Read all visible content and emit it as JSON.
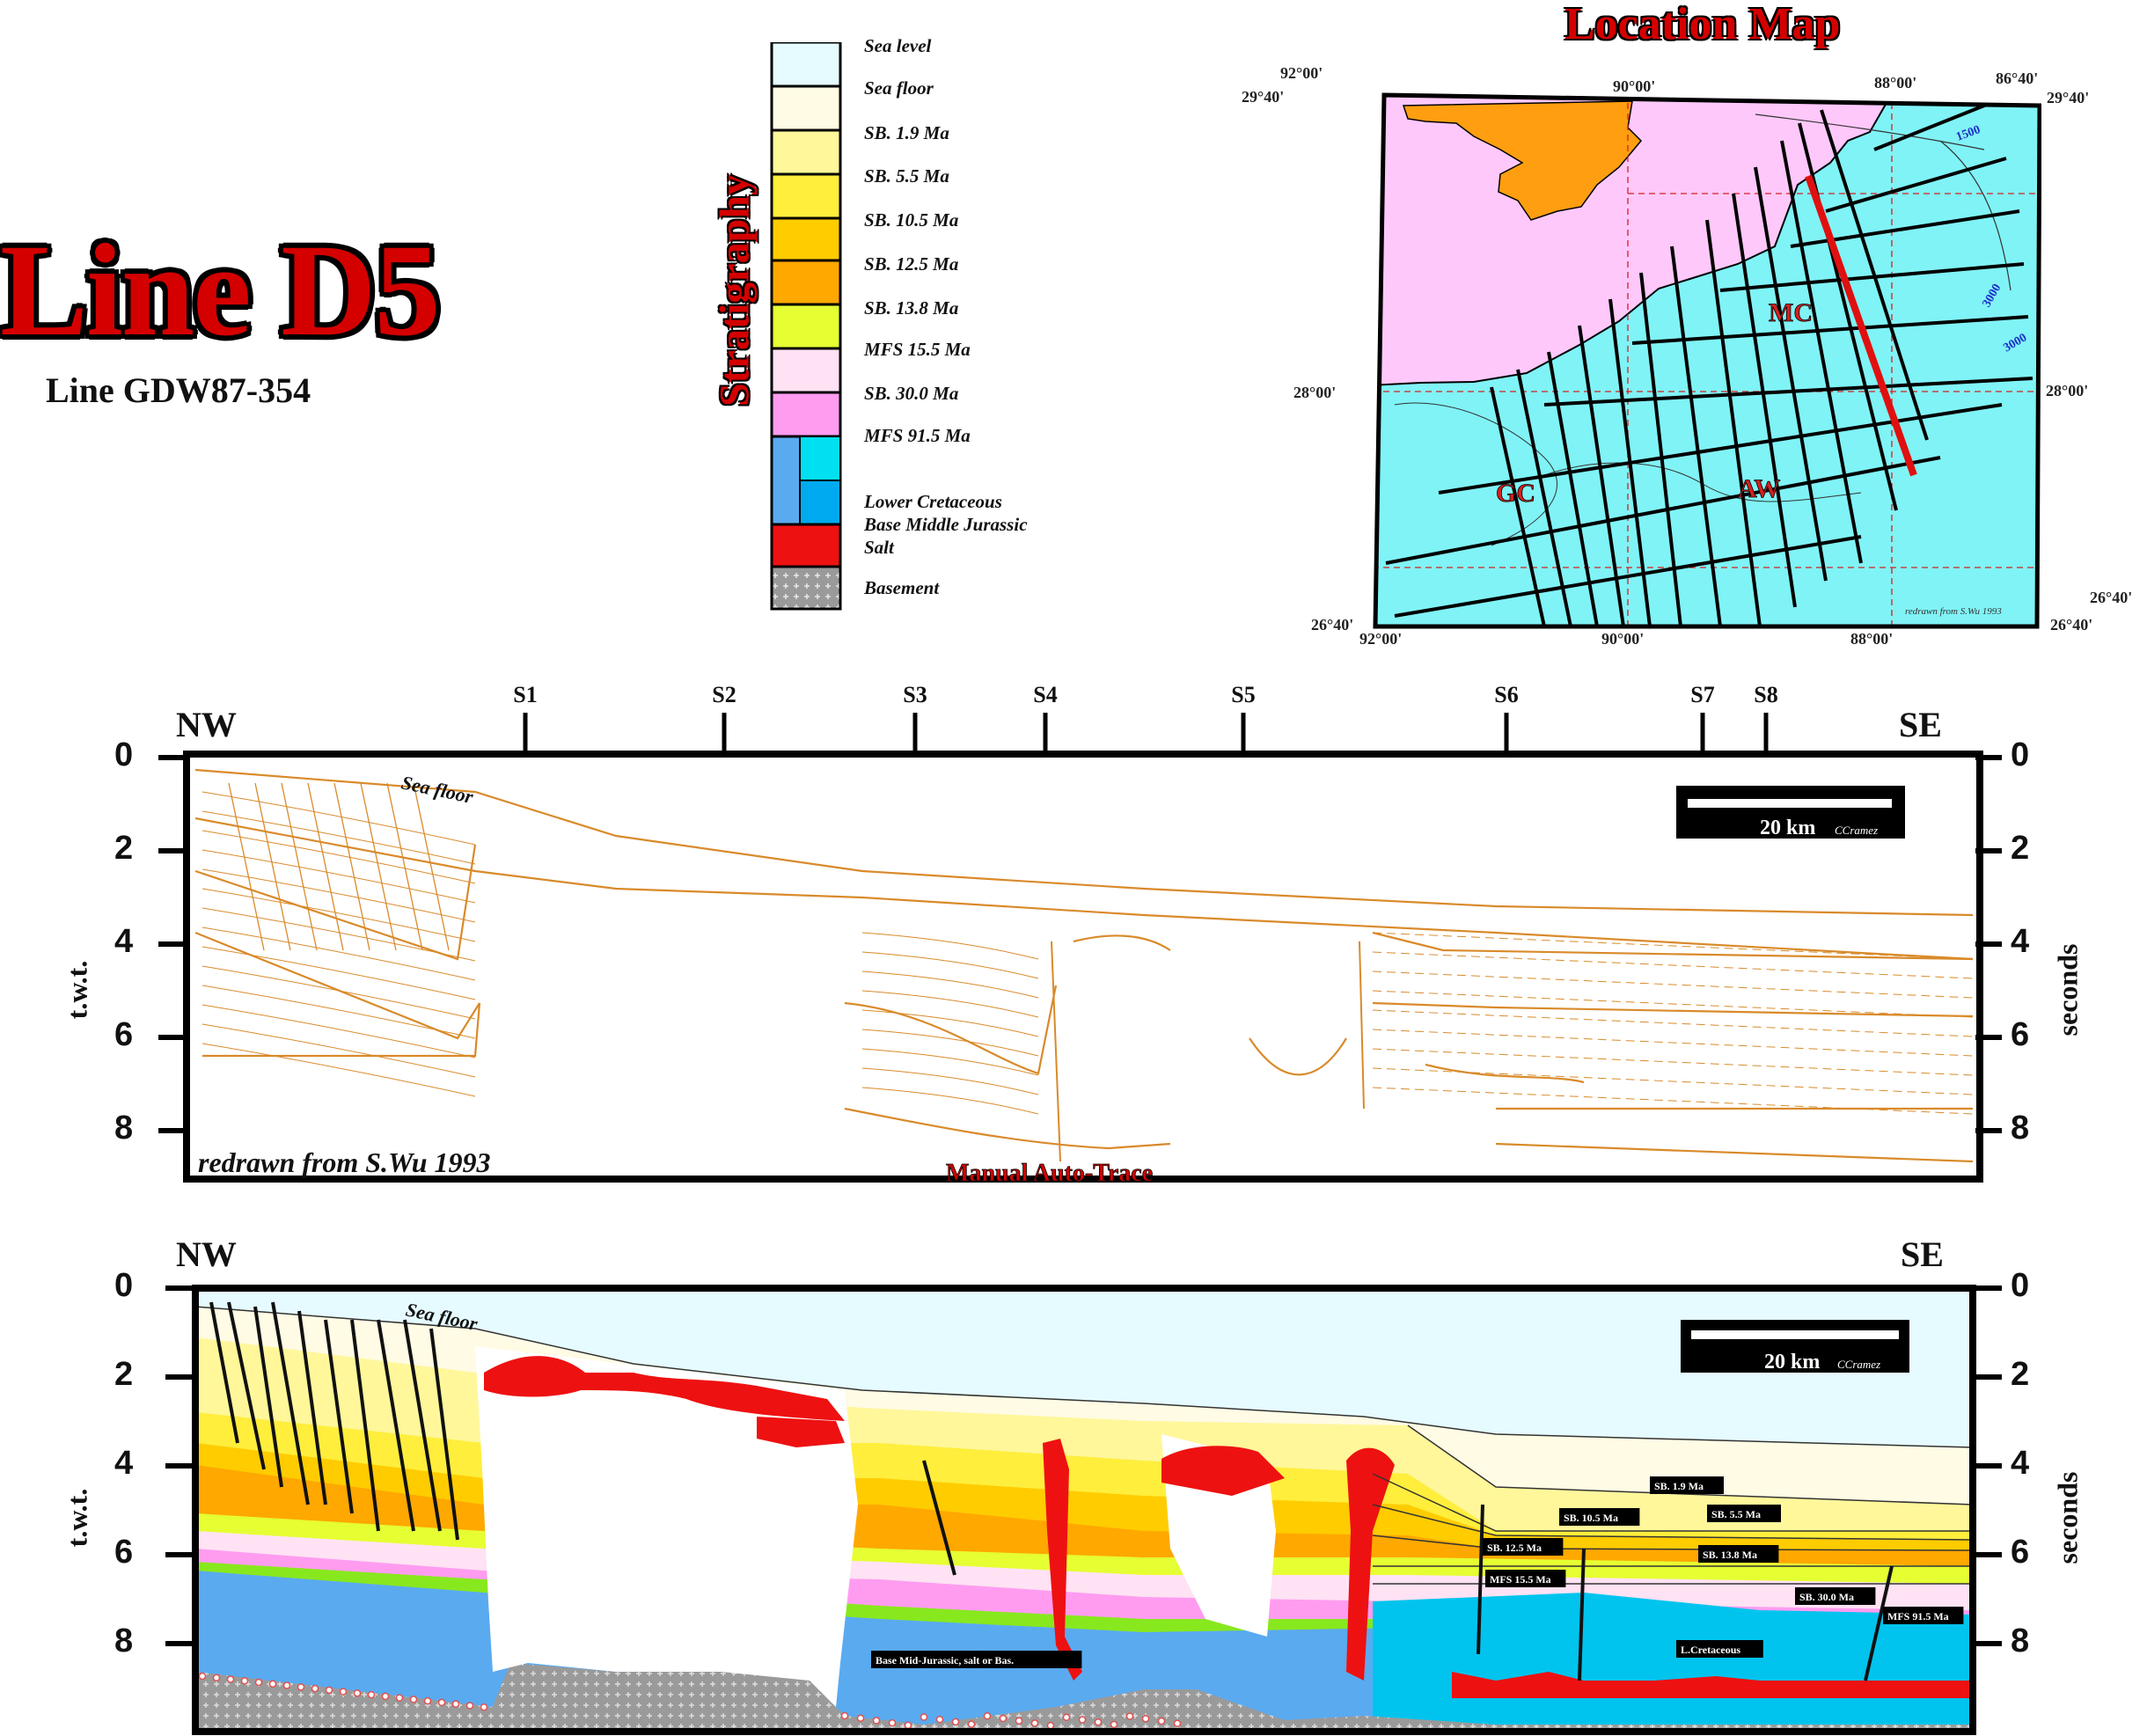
{
  "title": "Line D5",
  "subtitle": "Line GDW87-354",
  "stratigraphy": {
    "label": "Stratigraphy",
    "items": [
      {
        "label": "Sea level",
        "color": "#e6fbff"
      },
      {
        "label": "Sea floor",
        "color": "#fffbe4"
      },
      {
        "label": "SB. 1.9 Ma",
        "color": "#fff79a"
      },
      {
        "label": "SB. 5.5 Ma",
        "color": "#ffee3c"
      },
      {
        "label": "SB. 10.5 Ma",
        "color": "#ffcc00"
      },
      {
        "label": "SB. 12.5 Ma",
        "color": "#ffa800"
      },
      {
        "label": "SB. 13.8 Ma",
        "color": "#e6ff33"
      },
      {
        "label": "MFS 15.5 Ma",
        "color": "#ffe2f4"
      },
      {
        "label": "SB. 30.0 Ma",
        "color": "#ff9cf0"
      },
      {
        "label": "MFS 91.5 Ma",
        "color": "#88e81e"
      },
      {
        "label": "Lower Cretaceous",
        "color": "#5aaaf0"
      },
      {
        "label": "Base Middle Jurassic",
        "color": "#00e0f0"
      },
      {
        "label": "Salt",
        "color": "#ee1111"
      },
      {
        "label": "Basement",
        "color": "#a0a0a0"
      }
    ]
  },
  "location_map": {
    "title": "Location Map",
    "coords": {
      "top_left_lon": "92°00'",
      "top_mid_lon": "90°00'",
      "top_right_lon": "88°00'",
      "top_far_lon": "86°40'",
      "left_top_lat": "29°40'",
      "right_top_lat": "29°40'",
      "left_mid_lat": "28°00'",
      "right_mid_lat": "28°00'",
      "right_bottom_lat1": "26°40'",
      "left_bottom_lat": "26°40'",
      "right_bottom_lat2": "26°40'",
      "bottom_left_lon": "92°00'",
      "bottom_mid_lon": "90°00'",
      "bottom_right_lon": "88°00'"
    },
    "regions": [
      "MC",
      "GC",
      "AW"
    ],
    "contours": [
      "1500",
      "3000",
      "3000"
    ],
    "credit": "redrawn from S.Wu 1993"
  },
  "section_top": {
    "left_dir": "NW",
    "right_dir": "SE",
    "stations": [
      "S1",
      "S2",
      "S3",
      "S4",
      "S5",
      "S6",
      "S7",
      "S8"
    ],
    "y_ticks": [
      "0",
      "2",
      "4",
      "6",
      "8"
    ],
    "y_label_left": "t.w.t.",
    "y_label_right": "seconds",
    "seafloor_label": "Sea floor",
    "scale_label": "20 km",
    "scale_credit": "CCramez",
    "credit": "redrawn from S.Wu 1993",
    "method": "Manual Auto-Trace"
  },
  "section_bottom": {
    "left_dir": "NW",
    "right_dir": "SE",
    "y_ticks": [
      "0",
      "2",
      "4",
      "6",
      "8"
    ],
    "y_label_left": "t.w.t.",
    "y_label_right": "seconds",
    "seafloor_label": "Sea floor",
    "scale_label": "20 km",
    "scale_credit": "CCramez",
    "horizon_labels": [
      "SB. 1.9 Ma",
      "SB. 10.5 Ma",
      "SB. 5.5 Ma",
      "SB. 12.5 Ma",
      "SB. 13.8 Ma",
      "MFS 15.5 Ma",
      "SB. 30.0 Ma",
      "MFS 91.5 Ma",
      "L.Cretaceous",
      "Base Mid-Jurassic, salt or Bas."
    ]
  }
}
